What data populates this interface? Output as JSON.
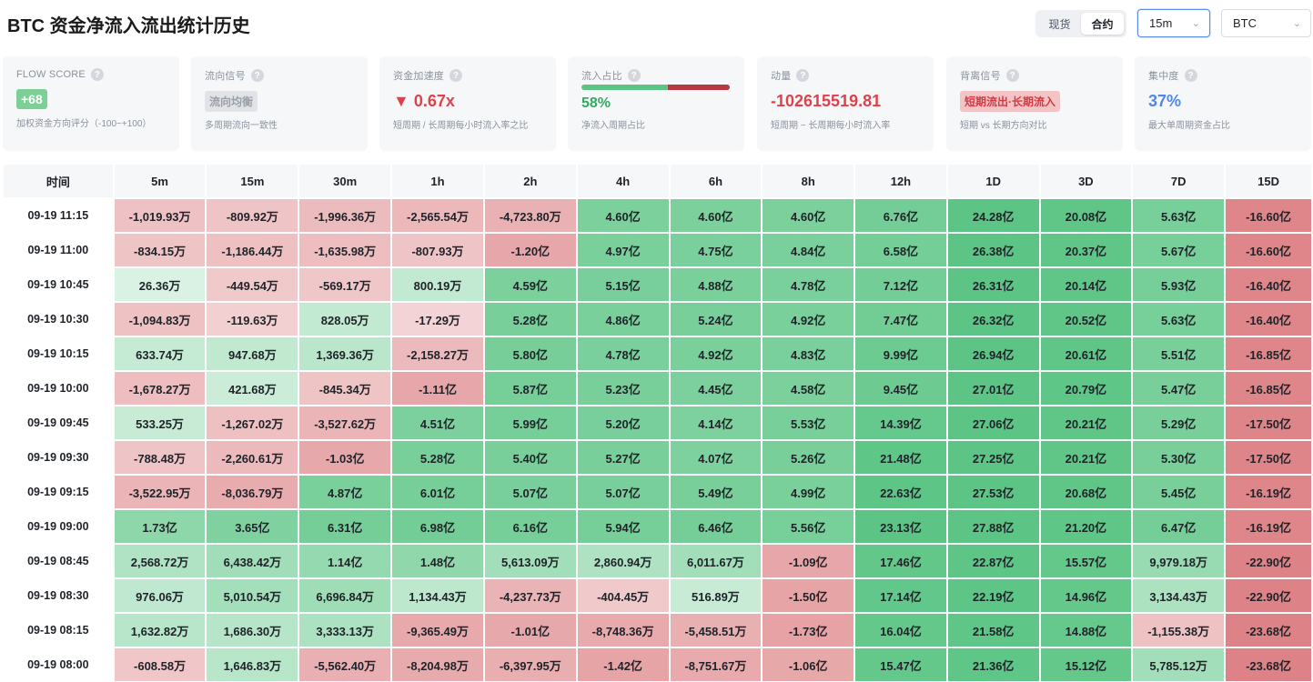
{
  "title": "BTC 资金净流入流出统计历史",
  "market_toggle": {
    "options": [
      "现货",
      "合约"
    ],
    "active_index": 1
  },
  "interval_select": {
    "value": "15m"
  },
  "symbol_select": {
    "value": "BTC"
  },
  "cards": {
    "flow_score": {
      "label": "FLOW SCORE",
      "value": "+68",
      "desc": "加权资金方向评分（-100~+100）"
    },
    "flow_signal": {
      "label": "流向信号",
      "value": "流向均衡",
      "desc": "多周期流向一致性"
    },
    "acceleration": {
      "label": "资金加速度",
      "value": "▼ 0.67x",
      "desc": "短周期 / 长周期每小时流入率之比"
    },
    "inflow_ratio": {
      "label": "流入占比",
      "value": "58%",
      "ratio": 0.58,
      "desc": "净流入周期占比"
    },
    "momentum": {
      "label": "动量",
      "value": "-102615519.81",
      "desc": "短周期 − 长周期每小时流入率"
    },
    "divergence": {
      "label": "背离信号",
      "value": "短期流出·长期流入",
      "desc": "短期 vs 长期方向对比"
    },
    "concentration": {
      "label": "集中度",
      "value": "37%",
      "desc": "最大单周期资金占比"
    }
  },
  "colors": {
    "positive": "#5cc585",
    "negative": "#d25a5f",
    "accent_blue": "#4f86f0"
  },
  "table": {
    "time_header": "时间",
    "headers": [
      "5m",
      "15m",
      "30m",
      "1h",
      "2h",
      "4h",
      "6h",
      "8h",
      "12h",
      "1D",
      "3D",
      "7D",
      "15D"
    ],
    "rows": [
      {
        "time": "09-19 11:15",
        "cells": [
          "-1,019.93万",
          "-809.92万",
          "-1,996.36万",
          "-2,565.54万",
          "-4,723.80万",
          "4.60亿",
          "4.60亿",
          "4.60亿",
          "6.76亿",
          "24.28亿",
          "20.08亿",
          "5.63亿",
          "-16.60亿"
        ]
      },
      {
        "time": "09-19 11:00",
        "cells": [
          "-834.15万",
          "-1,186.44万",
          "-1,635.98万",
          "-807.93万",
          "-1.20亿",
          "4.97亿",
          "4.75亿",
          "4.84亿",
          "6.58亿",
          "26.38亿",
          "20.37亿",
          "5.67亿",
          "-16.60亿"
        ]
      },
      {
        "time": "09-19 10:45",
        "cells": [
          "26.36万",
          "-449.54万",
          "-569.17万",
          "800.19万",
          "4.59亿",
          "5.15亿",
          "4.88亿",
          "4.78亿",
          "7.12亿",
          "26.31亿",
          "20.14亿",
          "5.93亿",
          "-16.40亿"
        ]
      },
      {
        "time": "09-19 10:30",
        "cells": [
          "-1,094.83万",
          "-119.63万",
          "828.05万",
          "-17.29万",
          "5.28亿",
          "4.86亿",
          "5.24亿",
          "4.92亿",
          "7.47亿",
          "26.32亿",
          "20.52亿",
          "5.63亿",
          "-16.40亿"
        ]
      },
      {
        "time": "09-19 10:15",
        "cells": [
          "633.74万",
          "947.68万",
          "1,369.36万",
          "-2,158.27万",
          "5.80亿",
          "4.78亿",
          "4.92亿",
          "4.83亿",
          "9.99亿",
          "26.94亿",
          "20.61亿",
          "5.51亿",
          "-16.85亿"
        ]
      },
      {
        "time": "09-19 10:00",
        "cells": [
          "-1,678.27万",
          "421.68万",
          "-845.34万",
          "-1.11亿",
          "5.87亿",
          "5.23亿",
          "4.45亿",
          "4.58亿",
          "9.45亿",
          "27.01亿",
          "20.79亿",
          "5.47亿",
          "-16.85亿"
        ]
      },
      {
        "time": "09-19 09:45",
        "cells": [
          "533.25万",
          "-1,267.02万",
          "-3,527.62万",
          "4.51亿",
          "5.99亿",
          "5.20亿",
          "4.14亿",
          "5.53亿",
          "14.39亿",
          "27.06亿",
          "20.21亿",
          "5.29亿",
          "-17.50亿"
        ]
      },
      {
        "time": "09-19 09:30",
        "cells": [
          "-788.48万",
          "-2,260.61万",
          "-1.03亿",
          "5.28亿",
          "5.40亿",
          "5.27亿",
          "4.07亿",
          "5.26亿",
          "21.48亿",
          "27.25亿",
          "20.21亿",
          "5.30亿",
          "-17.50亿"
        ]
      },
      {
        "time": "09-19 09:15",
        "cells": [
          "-3,522.95万",
          "-8,036.79万",
          "4.87亿",
          "6.01亿",
          "5.07亿",
          "5.07亿",
          "5.49亿",
          "4.99亿",
          "22.63亿",
          "27.53亿",
          "20.68亿",
          "5.45亿",
          "-16.19亿"
        ]
      },
      {
        "time": "09-19 09:00",
        "cells": [
          "1.73亿",
          "3.65亿",
          "6.31亿",
          "6.98亿",
          "6.16亿",
          "5.94亿",
          "6.46亿",
          "5.56亿",
          "23.13亿",
          "27.88亿",
          "21.20亿",
          "6.47亿",
          "-16.19亿"
        ]
      },
      {
        "time": "09-19 08:45",
        "cells": [
          "2,568.72万",
          "6,438.42万",
          "1.14亿",
          "1.48亿",
          "5,613.09万",
          "2,860.94万",
          "6,011.67万",
          "-1.09亿",
          "17.46亿",
          "22.87亿",
          "15.57亿",
          "9,979.18万",
          "-22.90亿"
        ]
      },
      {
        "time": "09-19 08:30",
        "cells": [
          "976.06万",
          "5,010.54万",
          "6,696.84万",
          "1,134.43万",
          "-4,237.73万",
          "-404.45万",
          "516.89万",
          "-1.50亿",
          "17.14亿",
          "22.19亿",
          "14.96亿",
          "3,134.43万",
          "-22.90亿"
        ]
      },
      {
        "time": "09-19 08:15",
        "cells": [
          "1,632.82万",
          "1,686.30万",
          "3,333.13万",
          "-9,365.49万",
          "-1.01亿",
          "-8,748.36万",
          "-5,458.51万",
          "-1.73亿",
          "16.04亿",
          "21.58亿",
          "14.88亿",
          "-1,155.38万",
          "-23.68亿"
        ]
      },
      {
        "time": "09-19 08:00",
        "cells": [
          "-608.58万",
          "1,646.83万",
          "-5,562.40万",
          "-8,204.98万",
          "-6,397.95万",
          "-1.42亿",
          "-8,751.67万",
          "-1.06亿",
          "15.47亿",
          "21.36亿",
          "15.12亿",
          "5,785.12万",
          "-23.68亿"
        ]
      }
    ]
  }
}
